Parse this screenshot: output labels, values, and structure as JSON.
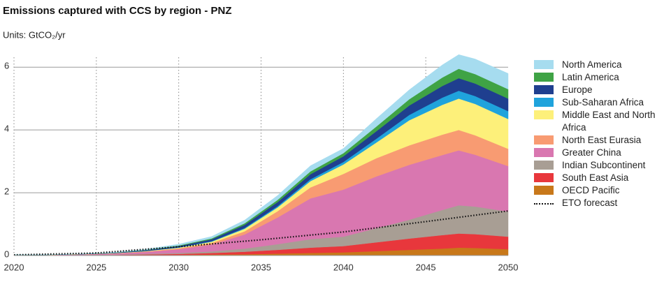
{
  "chart_data": {
    "type": "stacked_area",
    "title": "Emissions captured with CCS by region - PNZ",
    "subtitle": "Units: GtCO₂/yr",
    "x": [
      2020,
      2022,
      2024,
      2026,
      2028,
      2030,
      2032,
      2034,
      2036,
      2038,
      2040,
      2042,
      2044,
      2046,
      2047,
      2048,
      2050
    ],
    "xlim": [
      2020,
      2050
    ],
    "xticks": [
      2020,
      2025,
      2030,
      2035,
      2040,
      2045,
      2050
    ],
    "ylim": [
      0,
      6.05
    ],
    "yticks": [
      0,
      2,
      4,
      6
    ],
    "grid": true,
    "legend": "right",
    "series": [
      {
        "name": "North America",
        "color": "#a6dcef",
        "values": [
          0.002,
          0.003,
          0.005,
          0.01,
          0.02,
          0.04,
          0.06,
          0.1,
          0.14,
          0.18,
          0.15,
          0.25,
          0.3,
          0.4,
          0.45,
          0.48,
          0.5
        ]
      },
      {
        "name": "Latin America",
        "color": "#3fa345",
        "values": [
          0,
          0.001,
          0.002,
          0.004,
          0.01,
          0.02,
          0.03,
          0.05,
          0.07,
          0.09,
          0.1,
          0.15,
          0.2,
          0.27,
          0.3,
          0.3,
          0.3
        ]
      },
      {
        "name": "Europe",
        "color": "#1f3f8f",
        "values": [
          0.001,
          0.002,
          0.004,
          0.01,
          0.025,
          0.04,
          0.06,
          0.1,
          0.13,
          0.16,
          0.18,
          0.24,
          0.3,
          0.37,
          0.4,
          0.4,
          0.4
        ]
      },
      {
        "name": "Sub-Saharan Africa",
        "color": "#1fa3dc",
        "values": [
          0,
          0.001,
          0.001,
          0.002,
          0.004,
          0.01,
          0.015,
          0.025,
          0.04,
          0.06,
          0.08,
          0.12,
          0.17,
          0.23,
          0.25,
          0.25,
          0.25
        ]
      },
      {
        "name": "Middle East and North Africa",
        "color": "#fdf07a",
        "values": [
          0.001,
          0.002,
          0.003,
          0.006,
          0.01,
          0.02,
          0.04,
          0.08,
          0.12,
          0.2,
          0.3,
          0.5,
          0.8,
          0.95,
          1.0,
          1.0,
          0.95
        ]
      },
      {
        "name": "North East Eurasia",
        "color": "#f89b72",
        "values": [
          0.001,
          0.002,
          0.004,
          0.008,
          0.015,
          0.03,
          0.05,
          0.1,
          0.2,
          0.35,
          0.5,
          0.58,
          0.62,
          0.65,
          0.65,
          0.62,
          0.55
        ]
      },
      {
        "name": "Greater China",
        "color": "#d977b0",
        "values": [
          0.005,
          0.007,
          0.015,
          0.03,
          0.06,
          0.12,
          0.22,
          0.45,
          0.85,
          1.3,
          1.5,
          1.65,
          1.75,
          1.75,
          1.75,
          1.65,
          1.45
        ]
      },
      {
        "name": "Indian Subcontinent",
        "color": "#a89e94",
        "values": [
          0.002,
          0.003,
          0.005,
          0.01,
          0.02,
          0.03,
          0.05,
          0.1,
          0.18,
          0.27,
          0.3,
          0.45,
          0.6,
          0.8,
          0.9,
          0.88,
          0.8
        ]
      },
      {
        "name": "South East Asia",
        "color": "#e8373c",
        "values": [
          0.005,
          0.005,
          0.005,
          0.01,
          0.02,
          0.03,
          0.05,
          0.08,
          0.12,
          0.17,
          0.2,
          0.28,
          0.36,
          0.43,
          0.45,
          0.44,
          0.4
        ]
      },
      {
        "name": "OECD Pacific",
        "color": "#c8781a",
        "values": [
          0.005,
          0.005,
          0.01,
          0.01,
          0.015,
          0.02,
          0.03,
          0.04,
          0.06,
          0.08,
          0.1,
          0.14,
          0.18,
          0.22,
          0.25,
          0.24,
          0.2
        ]
      }
    ],
    "forecast": {
      "name": "ETO forecast",
      "color": "#111111",
      "style": "dotted",
      "x": [
        2020,
        2025,
        2030,
        2035,
        2040,
        2045,
        2050
      ],
      "values": [
        0.02,
        0.08,
        0.28,
        0.5,
        0.75,
        1.08,
        1.42
      ]
    }
  }
}
